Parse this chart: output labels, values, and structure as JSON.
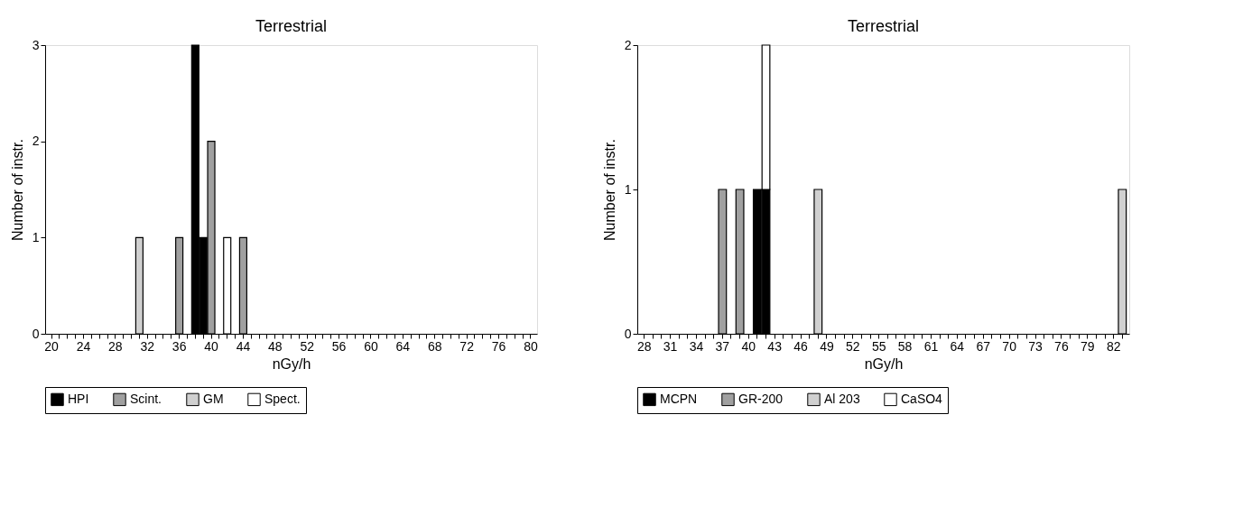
{
  "chart_data": [
    {
      "type": "bar",
      "stacked": true,
      "title": "Terrestrial",
      "xlabel": "nGy/h",
      "ylabel": "Number of instr.",
      "grid": false,
      "legend": "bottom",
      "categories": [
        "20",
        null,
        null,
        null,
        "24",
        null,
        null,
        null,
        "28",
        null,
        null,
        null,
        "32",
        null,
        null,
        null,
        "36",
        null,
        null,
        null,
        "40",
        null,
        null,
        null,
        "44",
        null,
        null,
        null,
        "48",
        null,
        null,
        null,
        "52",
        null,
        null,
        null,
        "56",
        null,
        null,
        null,
        "60",
        null,
        null,
        null,
        "64",
        null,
        null,
        null,
        "68",
        null,
        null,
        null,
        "72",
        null,
        null,
        null,
        "76",
        null,
        null,
        null,
        "80"
      ],
      "ylim": [
        0,
        3
      ],
      "yticks": [
        0,
        1,
        2,
        3
      ],
      "series": [
        {
          "name": "HPI",
          "color": "#000000",
          "values": [
            null,
            null,
            null,
            null,
            null,
            null,
            null,
            null,
            null,
            null,
            null,
            null,
            null,
            null,
            null,
            null,
            null,
            null,
            3,
            1,
            null,
            null,
            null,
            null,
            null,
            null,
            null,
            null,
            null,
            null,
            null,
            null,
            null,
            null,
            null,
            null,
            null,
            null,
            null,
            null,
            null,
            null,
            null,
            null,
            null,
            null,
            null,
            null,
            null,
            null,
            null,
            null,
            null,
            null,
            null,
            null,
            null,
            null,
            null,
            null,
            null
          ]
        },
        {
          "name": "Scint.",
          "color": "#a0a0a0",
          "values": [
            null,
            null,
            null,
            null,
            null,
            null,
            null,
            null,
            null,
            null,
            null,
            null,
            null,
            null,
            null,
            null,
            1,
            null,
            null,
            null,
            2,
            null,
            null,
            null,
            1,
            null,
            null,
            null,
            null,
            null,
            null,
            null,
            null,
            null,
            null,
            null,
            null,
            null,
            null,
            null,
            null,
            null,
            null,
            null,
            null,
            null,
            null,
            null,
            null,
            null,
            null,
            null,
            null,
            null,
            null,
            null,
            null,
            null,
            null,
            null,
            null
          ]
        },
        {
          "name": "GM",
          "color": "#d0d0d0",
          "values": [
            null,
            null,
            null,
            null,
            null,
            null,
            null,
            null,
            null,
            null,
            null,
            1,
            null,
            null,
            null,
            null,
            null,
            null,
            null,
            null,
            null,
            null,
            null,
            null,
            null,
            null,
            null,
            null,
            null,
            null,
            null,
            null,
            null,
            null,
            null,
            null,
            null,
            null,
            null,
            null,
            null,
            null,
            null,
            null,
            null,
            null,
            null,
            null,
            null,
            null,
            null,
            null,
            null,
            null,
            null,
            null,
            null,
            null,
            null,
            null,
            null
          ]
        },
        {
          "name": "Spect.",
          "color": "#ffffff",
          "values": [
            null,
            null,
            null,
            null,
            null,
            null,
            null,
            null,
            null,
            null,
            null,
            null,
            null,
            null,
            null,
            null,
            null,
            null,
            null,
            null,
            null,
            null,
            1,
            null,
            null,
            null,
            null,
            null,
            null,
            null,
            null,
            null,
            null,
            null,
            null,
            null,
            null,
            null,
            null,
            null,
            null,
            null,
            null,
            null,
            null,
            null,
            null,
            null,
            null,
            null,
            null,
            null,
            null,
            null,
            null,
            null,
            null,
            null,
            null,
            null,
            null
          ]
        }
      ]
    },
    {
      "type": "bar",
      "stacked": true,
      "title": "Terrestrial",
      "xlabel": "nGy/h",
      "ylabel": "Number of instr.",
      "grid": false,
      "legend": "bottom",
      "categories": [
        "28",
        null,
        null,
        "31",
        null,
        null,
        "34",
        null,
        null,
        "37",
        null,
        null,
        "40",
        null,
        null,
        "43",
        null,
        null,
        "46",
        null,
        null,
        "49",
        null,
        null,
        "52",
        null,
        null,
        "55",
        null,
        null,
        "58",
        null,
        null,
        "61",
        null,
        null,
        "64",
        null,
        null,
        "67",
        null,
        null,
        "70",
        null,
        null,
        "73",
        null,
        null,
        "76",
        null,
        null,
        "79",
        null,
        null,
        "82",
        null
      ],
      "ylim": [
        0,
        2
      ],
      "yticks": [
        0,
        1,
        2
      ],
      "series": [
        {
          "name": "MCPN",
          "color": "#000000",
          "values": [
            null,
            null,
            null,
            null,
            null,
            null,
            null,
            null,
            null,
            null,
            null,
            null,
            null,
            1,
            1,
            null,
            null,
            null,
            null,
            null,
            null,
            null,
            null,
            null,
            null,
            null,
            null,
            null,
            null,
            null,
            null,
            null,
            null,
            null,
            null,
            null,
            null,
            null,
            null,
            null,
            null,
            null,
            null,
            null,
            null,
            null,
            null,
            null,
            null,
            null,
            null,
            null,
            null,
            null,
            null,
            null
          ]
        },
        {
          "name": "GR-200",
          "color": "#a0a0a0",
          "values": [
            null,
            null,
            null,
            null,
            null,
            null,
            null,
            null,
            null,
            1,
            null,
            1,
            null,
            null,
            null,
            null,
            null,
            null,
            null,
            null,
            null,
            null,
            null,
            null,
            null,
            null,
            null,
            null,
            null,
            null,
            null,
            null,
            null,
            null,
            null,
            null,
            null,
            null,
            null,
            null,
            null,
            null,
            null,
            null,
            null,
            null,
            null,
            null,
            null,
            null,
            null,
            null,
            null,
            null,
            null,
            null
          ]
        },
        {
          "name": "Al 203",
          "color": "#d0d0d0",
          "values": [
            null,
            null,
            null,
            null,
            null,
            null,
            null,
            null,
            null,
            null,
            null,
            null,
            null,
            null,
            null,
            null,
            null,
            null,
            null,
            null,
            1,
            null,
            null,
            null,
            null,
            null,
            null,
            null,
            null,
            null,
            null,
            null,
            null,
            null,
            null,
            null,
            null,
            null,
            null,
            null,
            null,
            null,
            null,
            null,
            null,
            null,
            null,
            null,
            null,
            null,
            null,
            null,
            null,
            null,
            null,
            1
          ]
        },
        {
          "name": "CaSO4",
          "color": "#ffffff",
          "values": [
            null,
            null,
            null,
            null,
            null,
            null,
            null,
            null,
            null,
            null,
            null,
            null,
            null,
            null,
            1,
            null,
            null,
            null,
            null,
            null,
            null,
            null,
            null,
            null,
            null,
            null,
            null,
            null,
            null,
            null,
            null,
            null,
            null,
            null,
            null,
            null,
            null,
            null,
            null,
            null,
            null,
            null,
            null,
            null,
            null,
            null,
            null,
            null,
            null,
            null,
            null,
            null,
            null,
            null,
            null,
            null
          ]
        }
      ]
    }
  ]
}
